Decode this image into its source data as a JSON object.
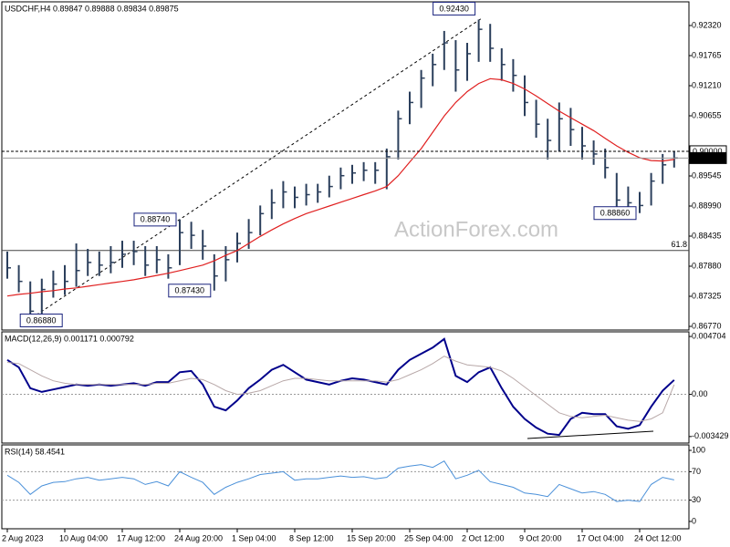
{
  "watermark": "ActionForex.com",
  "chart_data": [
    {
      "type": "hlc",
      "title": "USDCHF,H4 0.89847 0.89888 0.89834 0.89875",
      "categories": [
        "2 Aug 2023",
        null,
        null,
        null,
        null,
        "10 Aug 04:00",
        null,
        null,
        null,
        null,
        "17 Aug 12:00",
        null,
        null,
        null,
        null,
        "24 Aug 20:00",
        null,
        null,
        null,
        null,
        "1 Sep 04:00",
        null,
        null,
        null,
        null,
        "8 Sep 12:00",
        null,
        null,
        null,
        null,
        "15 Sep 20:00",
        null,
        null,
        null,
        null,
        "25 Sep 04:00",
        null,
        null,
        null,
        null,
        "2 Oct 12:00",
        null,
        null,
        null,
        null,
        "9 Oct 20:00",
        null,
        null,
        null,
        null,
        "17 Oct 04:00",
        null,
        null,
        null,
        null,
        "24 Oct 12:00",
        null,
        null,
        null
      ],
      "color": "#2b3f5c",
      "high": [
        0.8815,
        0.879,
        0.876,
        0.8765,
        0.878,
        0.879,
        0.883,
        0.882,
        0.8815,
        0.8825,
        0.8835,
        0.8835,
        0.8825,
        0.8825,
        0.881,
        0.8874,
        0.887,
        0.8855,
        0.881,
        0.8825,
        0.885,
        0.8875,
        0.89,
        0.893,
        0.8945,
        0.8935,
        0.894,
        0.894,
        0.8955,
        0.897,
        0.8975,
        0.898,
        0.898,
        0.9005,
        0.9075,
        0.911,
        0.915,
        0.918,
        0.9222,
        0.9205,
        0.92,
        0.9243,
        0.9235,
        0.919,
        0.917,
        0.914,
        0.9095,
        0.906,
        0.909,
        0.908,
        0.9045,
        0.902,
        0.9005,
        0.896,
        0.8935,
        0.8925,
        0.896,
        0.8995,
        0.9
      ],
      "low": [
        0.8765,
        0.874,
        0.8688,
        0.87,
        0.873,
        0.8735,
        0.875,
        0.877,
        0.877,
        0.8775,
        0.8785,
        0.879,
        0.877,
        0.8775,
        0.8765,
        0.879,
        0.882,
        0.88,
        0.8743,
        0.876,
        0.8795,
        0.882,
        0.8845,
        0.8875,
        0.8895,
        0.8895,
        0.89,
        0.8905,
        0.8915,
        0.893,
        0.894,
        0.8945,
        0.894,
        0.893,
        0.8985,
        0.905,
        0.908,
        0.912,
        0.915,
        0.911,
        0.913,
        0.9165,
        0.9165,
        0.913,
        0.911,
        0.9065,
        0.9025,
        0.8985,
        0.9,
        0.901,
        0.8985,
        0.8975,
        0.895,
        0.8895,
        0.889,
        0.8886,
        0.89,
        0.894,
        0.897
      ],
      "close": [
        0.8785,
        0.876,
        0.8705,
        0.8745,
        0.8755,
        0.876,
        0.878,
        0.8795,
        0.879,
        0.8795,
        0.881,
        0.8815,
        0.879,
        0.88,
        0.8785,
        0.885,
        0.8845,
        0.8825,
        0.877,
        0.88,
        0.883,
        0.885,
        0.8885,
        0.8905,
        0.8925,
        0.8915,
        0.892,
        0.8925,
        0.8935,
        0.8955,
        0.896,
        0.8965,
        0.8965,
        0.899,
        0.906,
        0.909,
        0.9135,
        0.916,
        0.92,
        0.915,
        0.918,
        0.9225,
        0.919,
        0.916,
        0.914,
        0.909,
        0.905,
        0.902,
        0.906,
        0.904,
        0.901,
        0.8995,
        0.897,
        0.891,
        0.8905,
        0.89,
        0.8945,
        0.8975,
        0.89875
      ],
      "lines": [
        {
          "color": "#e02020",
          "values": [
            0.8733,
            0.8736,
            0.8738,
            0.8741,
            0.8743,
            0.8746,
            0.8748,
            0.8751,
            0.8754,
            0.8757,
            0.876,
            0.8763,
            0.8767,
            0.8771,
            0.8775,
            0.878,
            0.8785,
            0.879,
            0.8798,
            0.8808,
            0.8817,
            0.883,
            0.8843,
            0.8855,
            0.8866,
            0.8876,
            0.8885,
            0.8892,
            0.8899,
            0.8906,
            0.8913,
            0.892,
            0.8927,
            0.8935,
            0.8955,
            0.898,
            0.9005,
            0.9035,
            0.9065,
            0.909,
            0.911,
            0.9125,
            0.9134,
            0.9132,
            0.9125,
            0.9115,
            0.9102,
            0.9088,
            0.9074,
            0.9062,
            0.905,
            0.9038,
            0.9024,
            0.901,
            0.8998,
            0.8988,
            0.8983,
            0.8982,
            0.8985
          ]
        }
      ],
      "ylim": [
        0.86703,
        0.92757
      ],
      "yticks": [
        {
          "value": 0.9232,
          "label": "0.92320"
        },
        {
          "value": 0.91765,
          "label": "0.91765"
        },
        {
          "value": 0.9121,
          "label": "0.91210"
        },
        {
          "value": 0.90655,
          "label": "0.90655"
        },
        {
          "value": 0.89545,
          "label": "0.89545"
        },
        {
          "value": 0.8899,
          "label": "0.88990"
        },
        {
          "value": 0.88435,
          "label": "0.88435"
        },
        {
          "value": 0.8788,
          "label": "0.87880"
        },
        {
          "value": 0.87325,
          "label": "0.87325"
        },
        {
          "value": 0.8677,
          "label": "0.86770"
        }
      ],
      "price_lines": [
        {
          "value": 0.9,
          "label": "0.90000",
          "style": "dashed"
        },
        {
          "value": 0.89875,
          "label": "0.89875",
          "style": "current"
        }
      ],
      "fib_level": {
        "price": 0.8817,
        "label": 61.8
      },
      "annotations": [
        {
          "at": 41,
          "value": 0.9243,
          "label": "0.92430"
        },
        {
          "at": 15,
          "value": 0.8874,
          "label": "0.88740"
        },
        {
          "at": 18,
          "value": 0.8743,
          "label": "0.87430"
        },
        {
          "at": 2,
          "value": 0.8688,
          "label": "0.86880"
        },
        {
          "at": 55,
          "value": 0.8886,
          "label": "0.88860"
        }
      ]
    },
    {
      "type": "line",
      "title": "MACD(12,26,9) 0.001171 0.000792",
      "lines": [
        {
          "color": "#00008b",
          "values": [
            0.0028,
            0.0022,
            0.0005,
            0.0002,
            0.0004,
            0.0006,
            0.0008,
            0.0007,
            0.0008,
            0.0007,
            0.0008,
            0.0009,
            0.0007,
            0.001,
            0.001,
            0.0018,
            0.0019,
            0.0008,
            -0.001,
            -0.0013,
            -0.0005,
            0.0005,
            0.0012,
            0.002,
            0.0024,
            0.0018,
            0.0012,
            0.001,
            0.0008,
            0.0011,
            0.0013,
            0.0012,
            0.001,
            0.0008,
            0.002,
            0.0028,
            0.0033,
            0.0038,
            0.0045,
            0.0015,
            0.001,
            0.0018,
            0.0022,
            0.0005,
            -0.001,
            -0.002,
            -0.0027,
            -0.0032,
            -0.0033,
            -0.002,
            -0.0015,
            -0.0016,
            -0.0016,
            -0.0026,
            -0.0028,
            -0.0025,
            -0.001,
            0.0003,
            0.001171
          ]
        },
        {
          "color": "#b8a8a8",
          "values": [
            0.0026,
            0.0025,
            0.002,
            0.0015,
            0.0011,
            0.0009,
            0.0008,
            0.0008,
            0.0008,
            0.0008,
            0.0008,
            0.0008,
            0.0008,
            0.0009,
            0.0009,
            0.0011,
            0.0013,
            0.0012,
            0.0008,
            0.0003,
            0.0,
            0.0001,
            0.0003,
            0.0007,
            0.0011,
            0.0013,
            0.0013,
            0.0012,
            0.0011,
            0.0011,
            0.0011,
            0.0011,
            0.0011,
            0.001,
            0.0012,
            0.0016,
            0.002,
            0.0025,
            0.0031,
            0.0027,
            0.0024,
            0.0023,
            0.0022,
            0.0019,
            0.0013,
            0.0006,
            -0.0001,
            -0.0008,
            -0.0015,
            -0.0018,
            -0.0019,
            -0.0018,
            -0.0017,
            -0.0019,
            -0.0021,
            -0.0022,
            -0.002,
            -0.0015,
            0.000792
          ]
        }
      ],
      "ylim": [
        -0.00396,
        0.00508
      ],
      "yticks": [
        0.004704,
        {
          "value": 0,
          "label": "0.00"
        },
        -0.003429
      ],
      "levels": [
        0
      ]
    },
    {
      "type": "line",
      "title": "RSI(14) 58.4541",
      "lines": [
        {
          "color": "#4a90d9",
          "values": [
            65,
            55,
            38,
            50,
            55,
            56,
            60,
            62,
            58,
            60,
            62,
            60,
            52,
            56,
            50,
            70,
            62,
            55,
            38,
            48,
            55,
            60,
            66,
            68,
            70,
            58,
            60,
            60,
            62,
            64,
            62,
            63,
            60,
            62,
            75,
            78,
            80,
            76,
            85,
            60,
            65,
            72,
            56,
            52,
            48,
            40,
            38,
            35,
            52,
            46,
            40,
            42,
            38,
            28,
            30,
            28,
            52,
            62,
            58.4541
          ]
        }
      ],
      "ylim": [
        -10.3,
        107.7
      ],
      "yticks": [
        100,
        70,
        30,
        0
      ],
      "levels": [
        70,
        30
      ]
    }
  ]
}
